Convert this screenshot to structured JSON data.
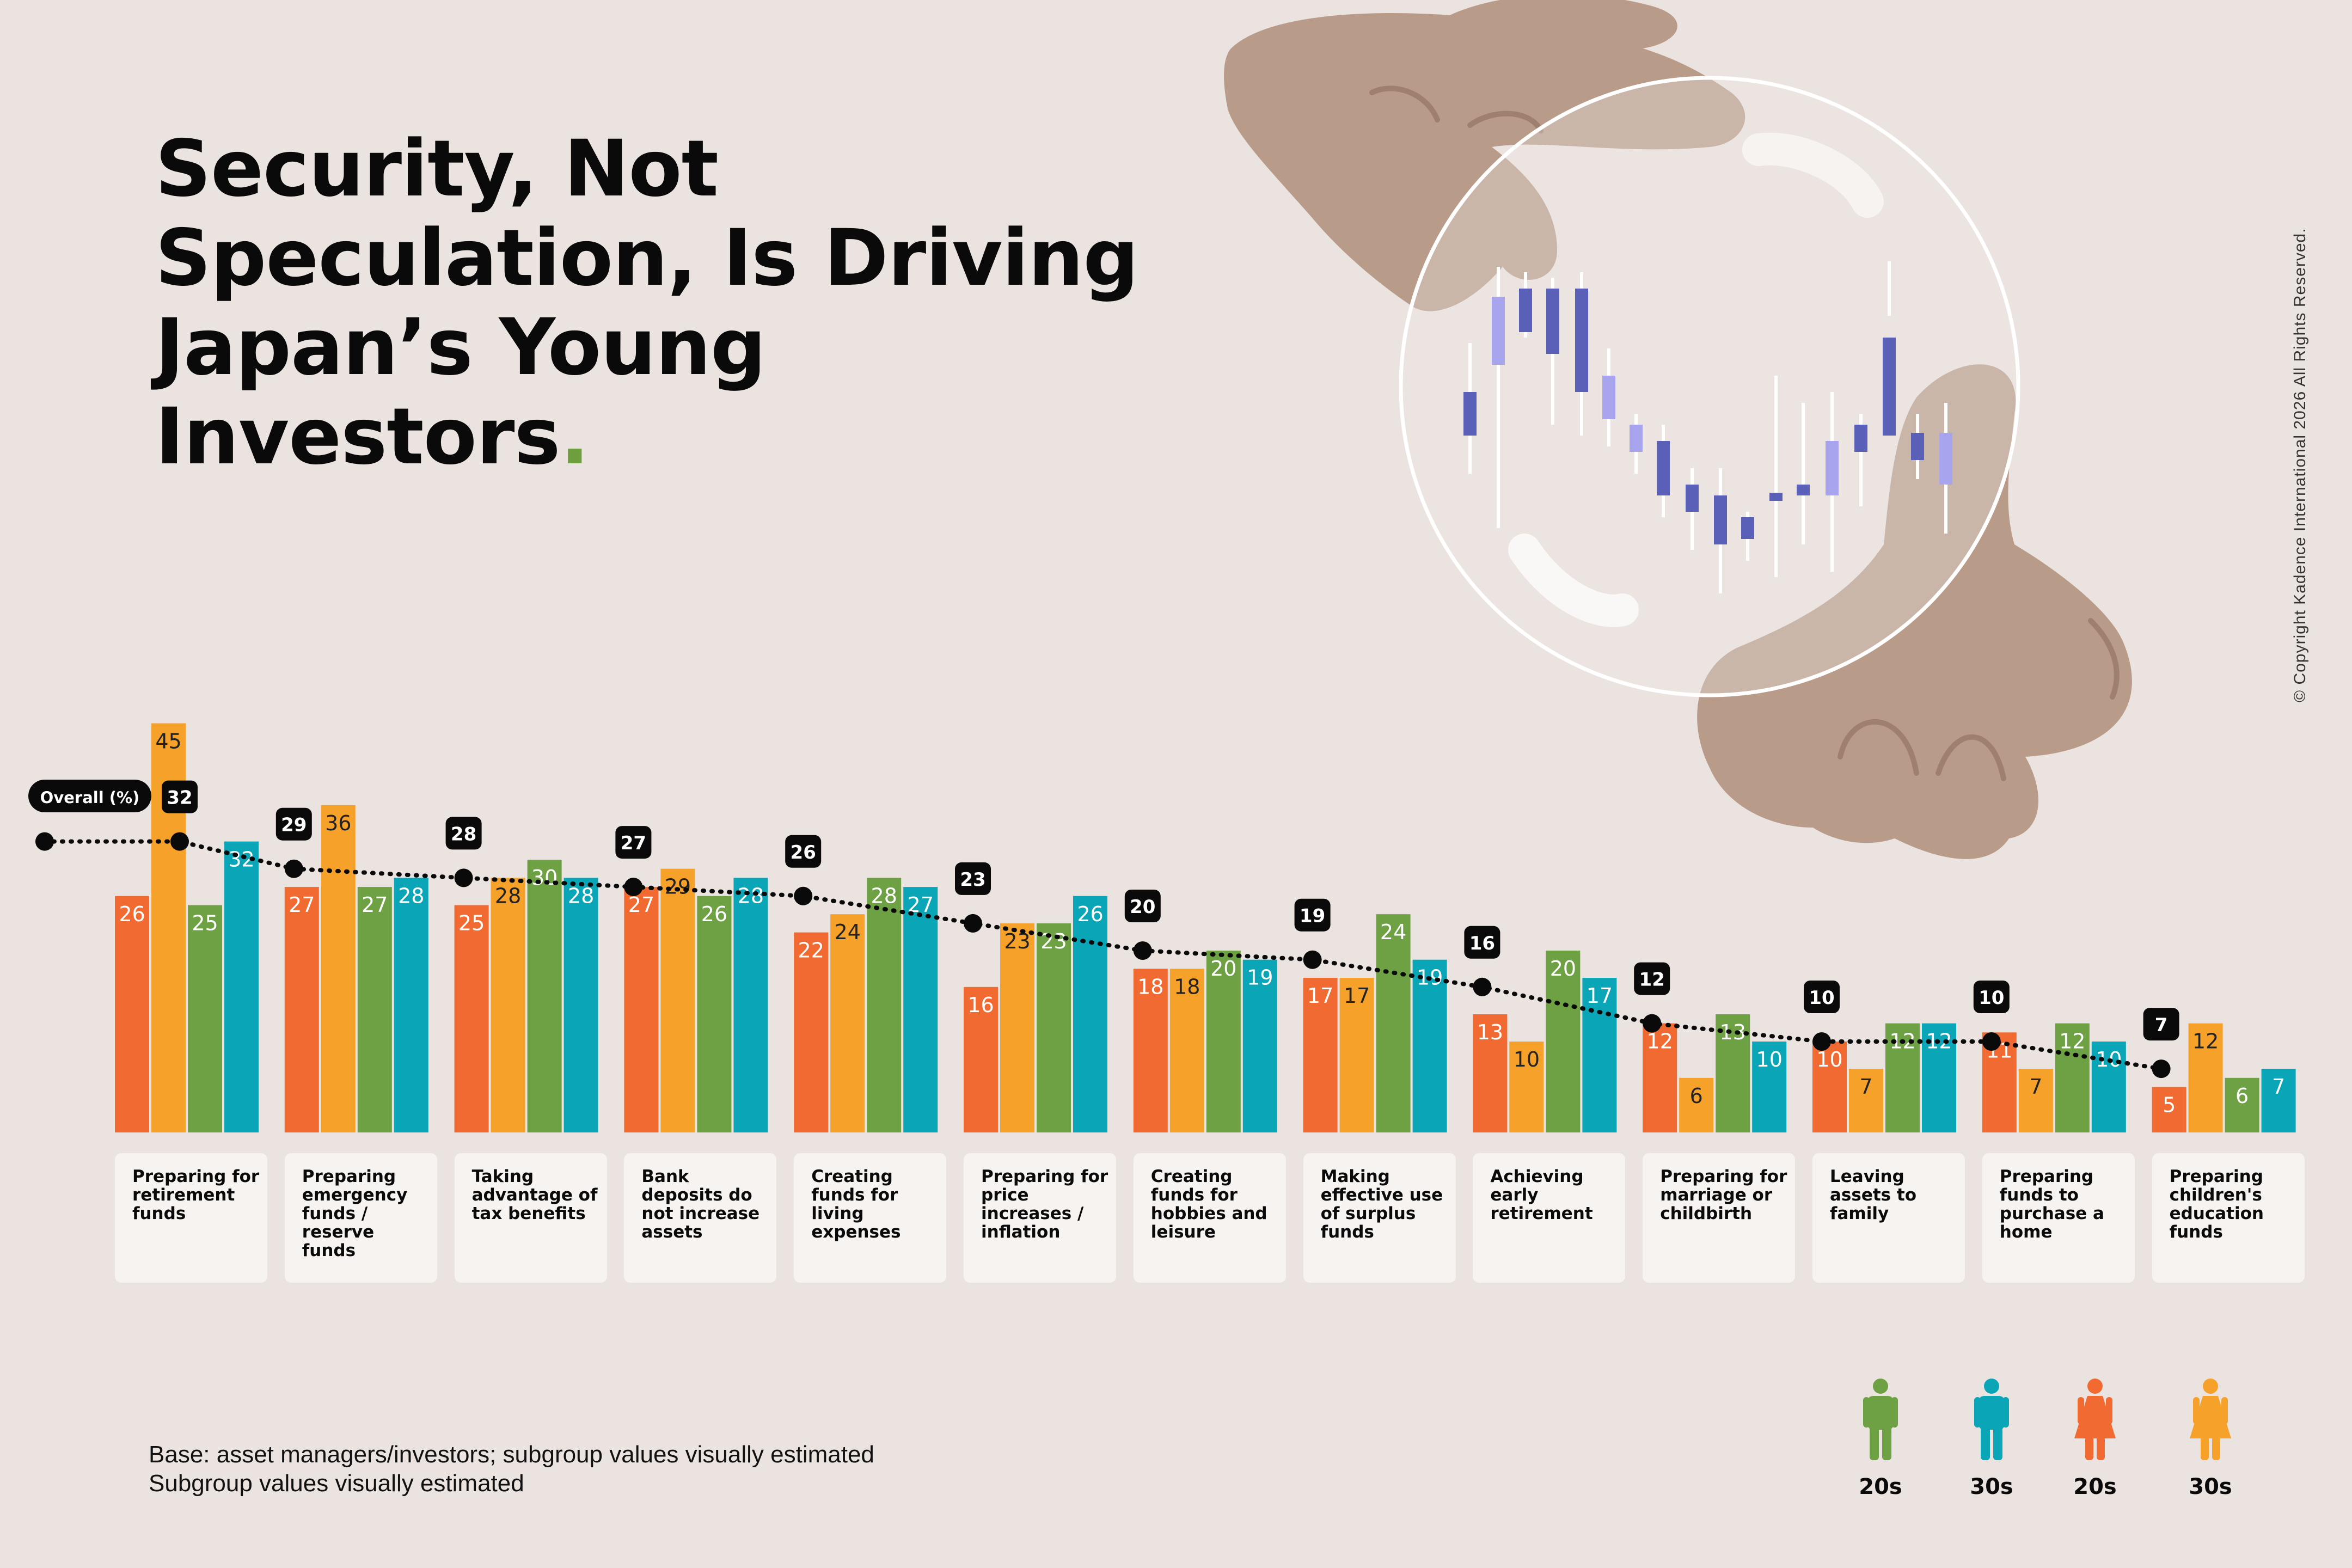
{
  "title_lines": [
    "Security, Not",
    "Speculation, Is Driving",
    "Japan’s Young",
    "Investors"
  ],
  "title_dot": ".",
  "footnote_lines": [
    "Base: asset managers/investors; subgroup values visually estimated",
    "Subgroup values visually estimated"
  ],
  "copyright": "© Copyright Kadence International 2026 All Rights Reserved.",
  "overall_label": "Overall (%)",
  "colors": {
    "female_20s": "#f06a32",
    "female_30s": "#f5a12a",
    "male_20s": "#6ea044",
    "male_30s": "#0aa6b8",
    "overall": "#0a0a0a",
    "background": "#ebe3df",
    "card": "#f7f3f1",
    "hand": "#b99b8a"
  },
  "legend": [
    {
      "icon": "male-figure-icon",
      "label": "20s",
      "color": "#6ea044"
    },
    {
      "icon": "male-figure-icon",
      "label": "30s",
      "color": "#0aa6b8"
    },
    {
      "icon": "female-figure-icon",
      "label": "20s",
      "color": "#f06a32"
    },
    {
      "icon": "female-figure-icon",
      "label": "30s",
      "color": "#f5a12a"
    }
  ],
  "chart_data": {
    "type": "bar",
    "ylim": [
      0,
      45
    ],
    "grid": false,
    "categories": [
      "Preparing for retirement funds",
      "Preparing emergency funds / reserve funds",
      "Taking advantage of tax benefits",
      "Bank deposits do not increase assets",
      "Creating funds for living expenses",
      "Preparing for price increases / inflation",
      "Creating funds for hobbies and leisure",
      "Making effective use of surplus funds",
      "Achieving early retirement",
      "Preparing for marriage or childbirth",
      "Leaving assets to family",
      "Preparing funds to purchase a home",
      "Preparing children's education funds"
    ],
    "series": [
      {
        "values": [
          26,
          27,
          25,
          27,
          22,
          16,
          18,
          17,
          13,
          12,
          10,
          11,
          5
        ]
      },
      {
        "values": [
          45,
          36,
          28,
          29,
          24,
          23,
          18,
          17,
          10,
          6,
          7,
          7,
          12
        ]
      },
      {
        "values": [
          25,
          27,
          30,
          26,
          28,
          23,
          20,
          24,
          20,
          13,
          12,
          12,
          6
        ]
      },
      {
        "values": [
          32,
          28,
          28,
          28,
          27,
          26,
          19,
          19,
          17,
          10,
          12,
          10,
          7
        ]
      },
      {
        "name": "Overall (%)",
        "type": "line",
        "values": [
          32,
          29,
          28,
          27,
          26,
          23,
          20,
          19,
          16,
          12,
          10,
          10,
          7
        ]
      }
    ]
  }
}
